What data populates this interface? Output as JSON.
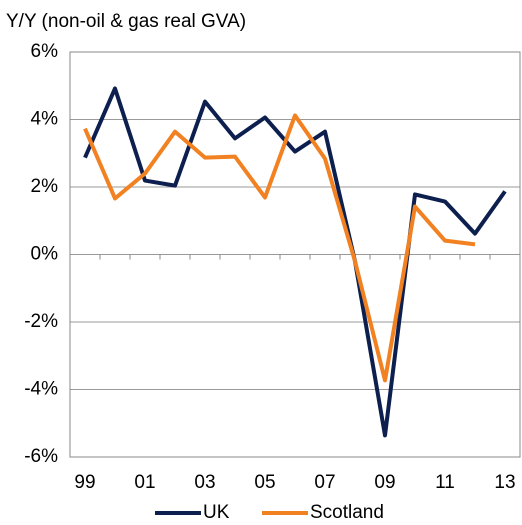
{
  "chart_data": {
    "type": "line",
    "subtitle": "Y/Y (non-oil & gas real GVA)",
    "categories": [
      "99",
      null,
      "01",
      null,
      "03",
      null,
      "05",
      null,
      "07",
      null,
      "09",
      null,
      "11",
      null,
      "13"
    ],
    "series": [
      {
        "name": "UK",
        "color": "#0c1f4f",
        "values": [
          2.87,
          4.92,
          2.19,
          2.04,
          4.53,
          3.44,
          4.06,
          3.05,
          3.64,
          -0.2,
          -5.36,
          1.78,
          1.57,
          0.62,
          1.87
        ]
      },
      {
        "name": "Scotland",
        "color": "#f28122",
        "values": [
          3.73,
          1.66,
          2.4,
          3.64,
          2.87,
          2.9,
          1.69,
          4.12,
          2.84,
          -0.2,
          -3.73,
          1.42,
          0.41,
          0.3,
          null
        ]
      }
    ],
    "ylim": [
      -6,
      6
    ],
    "yticks": [
      {
        "value": -6,
        "label": "-6%"
      },
      {
        "value": -4,
        "label": "-4%"
      },
      {
        "value": -2,
        "label": "-2%"
      },
      {
        "value": 0,
        "label": "0%"
      },
      {
        "value": 2,
        "label": "2%"
      },
      {
        "value": 4,
        "label": "4%"
      },
      {
        "value": 6,
        "label": "6%"
      }
    ],
    "grid": true,
    "legend": "bottom"
  }
}
